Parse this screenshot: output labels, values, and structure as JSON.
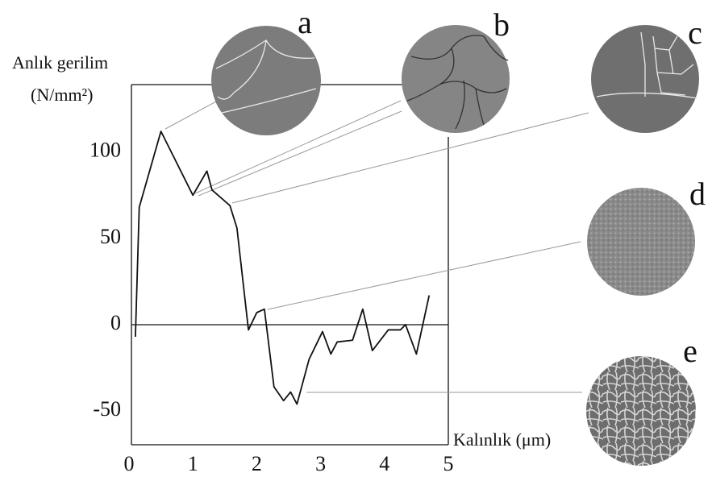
{
  "chart_data": {
    "type": "line",
    "y_label_line1": "Anlık gerilim",
    "y_label_line2": "(N/mm²)",
    "x_label": "Kalınlık (μm)",
    "annotations": [
      "a",
      "b",
      "c",
      "d",
      "e"
    ],
    "x": [
      0.1,
      0.16,
      0.5,
      1.0,
      1.22,
      1.3,
      1.58,
      1.69,
      1.87,
      2.0,
      2.12,
      2.27,
      2.42,
      2.53,
      2.63,
      2.82,
      3.03,
      3.16,
      3.26,
      3.5,
      3.66,
      3.81,
      4.06,
      4.25,
      4.33,
      4.5,
      4.7
    ],
    "values": [
      -7,
      68,
      112,
      75,
      89,
      78,
      69,
      56,
      -3,
      7,
      9,
      -36,
      -44,
      -39,
      -46,
      -20,
      -4,
      -17,
      -10,
      -9,
      9,
      -15,
      -3,
      -3,
      0,
      -17,
      17
    ],
    "color": "#111111",
    "xlim": [
      0,
      5
    ],
    "xticks": [
      0,
      1,
      2,
      3,
      4,
      5
    ],
    "ylim": [
      -70,
      140
    ],
    "yticks": [
      -50,
      0,
      50,
      100
    ],
    "grid": false
  }
}
